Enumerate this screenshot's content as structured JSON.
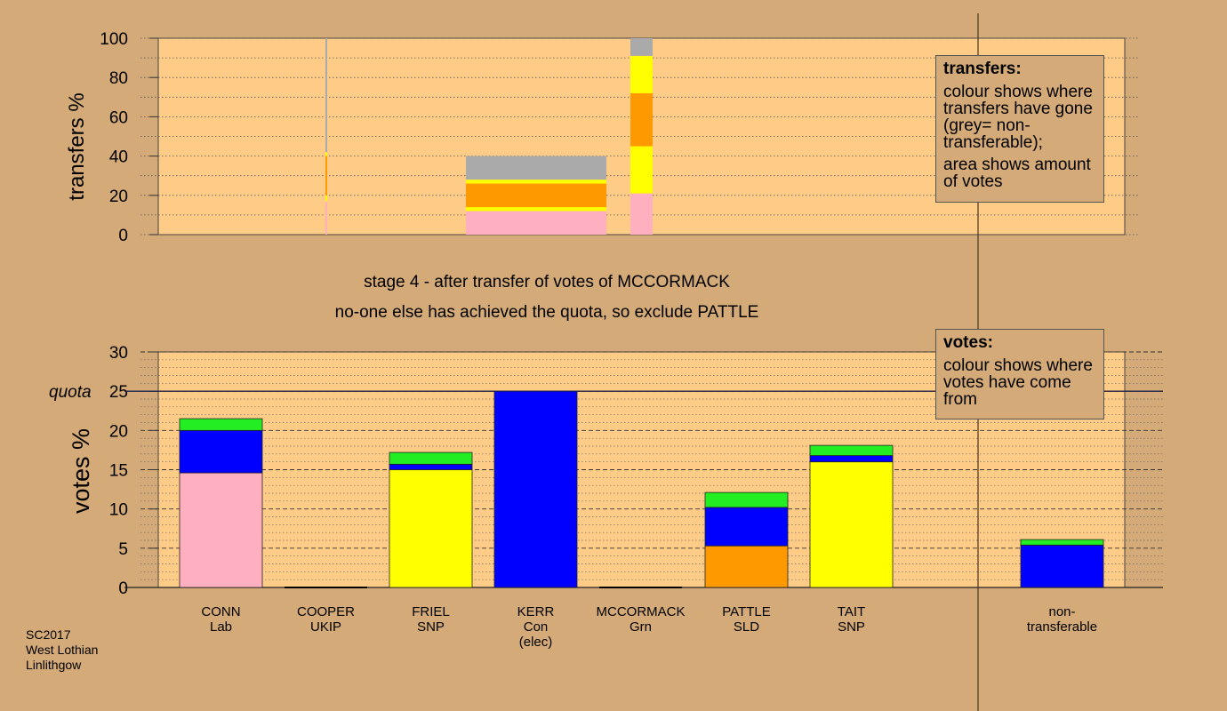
{
  "chart_data": [
    {
      "type": "bar",
      "stacked": true,
      "chart": "transfers",
      "ylabel": "transfers %",
      "ylim": [
        0,
        100
      ],
      "yticks": [
        0,
        20,
        40,
        60,
        80,
        100
      ],
      "grid": true,
      "note": "bar width proportional to votes transferred; colours show destination",
      "columns": [
        {
          "candidate": "COOPER",
          "segments": [
            {
              "to": "CONN",
              "color": "#ffb0c0",
              "value": 17
            },
            {
              "to": "FRIEL",
              "color": "#ffff00",
              "value": 3
            },
            {
              "to": "PATTLE",
              "color": "#ff9900",
              "value": 20
            },
            {
              "to": "TAIT",
              "color": "#ffff00",
              "value": 2
            },
            {
              "to": "non-transferable",
              "color": "#aaaaaa",
              "value": 58
            }
          ]
        },
        {
          "candidate": "MCCORMACK",
          "segments": [
            {
              "to": "CONN",
              "color": "#ffb0c0",
              "value": 12
            },
            {
              "to": "FRIEL",
              "color": "#ffff00",
              "value": 2
            },
            {
              "to": "PATTLE",
              "color": "#ff9900",
              "value": 12
            },
            {
              "to": "TAIT",
              "color": "#ffff00",
              "value": 2
            },
            {
              "to": "non-transferable",
              "color": "#aaaaaa",
              "value": 12
            }
          ]
        },
        {
          "candidate": "PATTLE",
          "segments": [
            {
              "to": "CONN",
              "color": "#ffb0c0",
              "value": 21
            },
            {
              "to": "FRIEL",
              "color": "#ffff00",
              "value": 24
            },
            {
              "to": "PATTLE",
              "color": "#ff9900",
              "value": 27
            },
            {
              "to": "TAIT",
              "color": "#ffff00",
              "value": 19
            },
            {
              "to": "non-transferable",
              "color": "#aaaaaa",
              "value": 9
            }
          ]
        }
      ]
    },
    {
      "type": "bar",
      "stacked": true,
      "chart": "votes",
      "ylabel": "votes %",
      "ylim": [
        0,
        30
      ],
      "yticks": [
        0,
        5,
        10,
        15,
        20,
        25,
        30
      ],
      "quota": 25,
      "quota_label": "quota",
      "grid": true,
      "categories": [
        "CONN\nLab",
        "COOPER\nUKIP",
        "FRIEL\nSNP",
        "KERR\nCon\n(elec)",
        "MCCORMACK\nGrn",
        "PATTLE\nSLD",
        "TAIT\nSNP",
        "non-\ntransferable"
      ],
      "series": [
        {
          "color": "#ffb0c0",
          "values": [
            14.6,
            0,
            0,
            0,
            0,
            0,
            0,
            0
          ]
        },
        {
          "color": "#ffff00",
          "values": [
            0,
            0,
            15.0,
            0,
            0,
            0,
            16.0,
            0
          ]
        },
        {
          "color": "#ff9900",
          "values": [
            0,
            0,
            0,
            0,
            0,
            5.3,
            0,
            0
          ]
        },
        {
          "color": "#0000ff",
          "values": [
            5.4,
            0,
            0.7,
            25.0,
            0,
            4.9,
            0.8,
            5.4
          ]
        },
        {
          "color": "#22ee22",
          "values": [
            1.5,
            0,
            1.5,
            0,
            0,
            1.9,
            1.3,
            0.7
          ]
        }
      ]
    }
  ],
  "headline": {
    "line1": "stage 4 - after transfer of votes of MCCORMACK",
    "line2": "no-one else has achieved the quota, so exclude PATTLE"
  },
  "legend_transfers": {
    "title": "transfers:",
    "p1": "colour shows where transfers have gone (grey= non-transferable);",
    "p2": "area shows amount of votes"
  },
  "legend_votes": {
    "title": "votes:",
    "p1": "colour shows where votes have come from"
  },
  "footer": {
    "line1": "SC2017",
    "line2": "West Lothian",
    "line3": "Linlithgow"
  }
}
